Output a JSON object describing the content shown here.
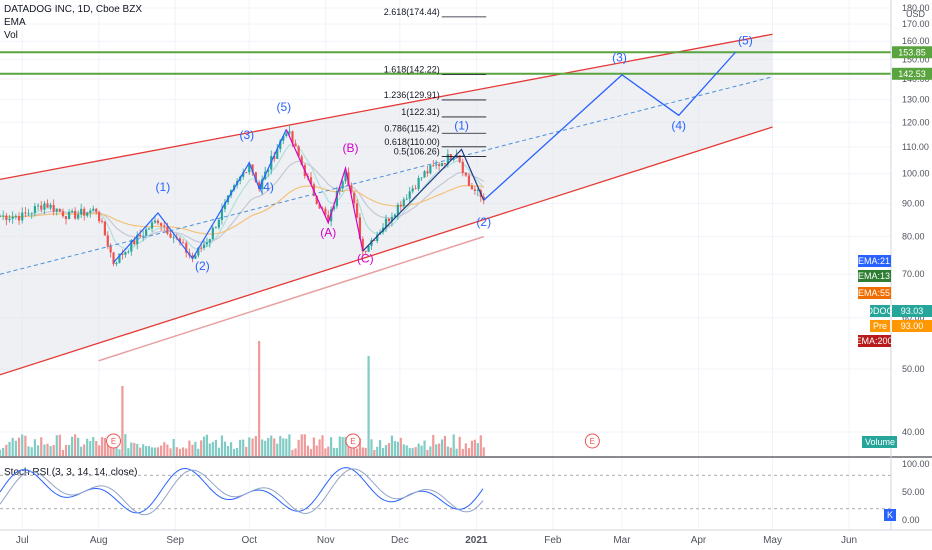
{
  "header": {
    "title": "DATADOG INC, 1D, Cboe BZX",
    "indicator_ema": "EMA",
    "indicator_vol": "Vol"
  },
  "currency": "USD",
  "colors": {
    "channel": "#e53935",
    "channel_fill": "#e0e3eb",
    "midline": "#4a90d9",
    "projection": "#2962ff",
    "hline": "#5aa43f",
    "wave_blue": "#2962ff",
    "wave_magenta": "#d500c8",
    "candle_up": "#26a69a",
    "candle_down": "#ef5350",
    "vol_up": "#80cbc4",
    "vol_down": "#ef9a9a",
    "ema_fast": "#b2dfdb",
    "ema_mid": "#c5c8d6",
    "ema55": "#f5c27a",
    "ema200": "#e8a0a0",
    "stoch_k": "#2962ff",
    "stoch_d": "#90a4c8"
  },
  "chart_data": [
    {
      "type": "line",
      "subtype": "candlestick",
      "title": "DATADOG INC, 1D, Cboe BZX",
      "ylabel": "USD",
      "yscale": "log",
      "ylim": [
        35,
        190
      ],
      "grid": true,
      "x_ticks": [
        "Jul",
        "Aug",
        "Sep",
        "Oct",
        "Nov",
        "Dec",
        "2021",
        "Feb",
        "Mar",
        "Apr",
        "May",
        "Jun"
      ],
      "y_ticks": [
        40,
        50,
        60,
        70,
        80,
        90,
        100,
        110,
        120,
        130,
        140,
        150,
        160,
        170,
        180
      ],
      "price_close_path": [
        {
          "x": "2020-06-22",
          "y": 86
        },
        {
          "x": "2020-07-01",
          "y": 86
        },
        {
          "x": "2020-07-10",
          "y": 90
        },
        {
          "x": "2020-07-20",
          "y": 86
        },
        {
          "x": "2020-07-31",
          "y": 88
        },
        {
          "x": "2020-08-07",
          "y": 73
        },
        {
          "x": "2020-08-25",
          "y": 85
        },
        {
          "x": "2020-09-08",
          "y": 74
        },
        {
          "x": "2020-09-15",
          "y": 80
        },
        {
          "x": "2020-10-01",
          "y": 104
        },
        {
          "x": "2020-10-05",
          "y": 95
        },
        {
          "x": "2020-10-16",
          "y": 117
        },
        {
          "x": "2020-10-26",
          "y": 95
        },
        {
          "x": "2020-11-02",
          "y": 84
        },
        {
          "x": "2020-11-09",
          "y": 102
        },
        {
          "x": "2020-11-16",
          "y": 76
        },
        {
          "x": "2020-11-23",
          "y": 82
        },
        {
          "x": "2020-12-11",
          "y": 100
        },
        {
          "x": "2020-12-24",
          "y": 108
        },
        {
          "x": "2020-12-29",
          "y": 96
        },
        {
          "x": "2021-01-04",
          "y": 91
        }
      ],
      "annotations": {
        "wave_labels_blue": [
          {
            "label": "(1)",
            "x": "2020-08-27",
            "y": 94
          },
          {
            "label": "(2)",
            "x": "2020-09-12",
            "y": 71
          },
          {
            "label": "(3)",
            "x": "2020-09-30",
            "y": 113
          },
          {
            "label": "(4)",
            "x": "2020-10-08",
            "y": 94
          },
          {
            "label": "(5)",
            "x": "2020-10-15",
            "y": 125
          },
          {
            "label": "(1)",
            "x": "2020-12-26",
            "y": 117
          },
          {
            "label": "(2)",
            "x": "2021-01-04",
            "y": 83
          },
          {
            "label": "(3)",
            "x": "2021-02-28",
            "y": 149
          },
          {
            "label": "(4)",
            "x": "2021-03-24",
            "y": 117
          },
          {
            "label": "(5)",
            "x": "2021-04-20",
            "y": 158
          }
        ],
        "wave_labels_magenta": [
          {
            "label": "(A)",
            "x": "2020-11-02",
            "y": 80
          },
          {
            "label": "(B)",
            "x": "2020-11-11",
            "y": 108
          },
          {
            "label": "(C)",
            "x": "2020-11-17",
            "y": 73
          }
        ],
        "fibonacci_levels": [
          {
            "label": "2.618(174.44)",
            "value": 174.44
          },
          {
            "label": "1.618(142.22)",
            "value": 142.22
          },
          {
            "label": "1.236(129.91)",
            "value": 129.91
          },
          {
            "label": "1(122.31)",
            "value": 122.31
          },
          {
            "label": "0.786(115.42)",
            "value": 115.42
          },
          {
            "label": "0.618(110.00)",
            "value": 110.0
          },
          {
            "label": "0.5(106.26)",
            "value": 106.26
          }
        ],
        "horizontal_levels": [
          {
            "label": "153.85",
            "value": 153.85
          },
          {
            "label": "142.53",
            "value": 142.53
          }
        ],
        "earnings_markers": [
          "E",
          "E",
          "E"
        ],
        "projection_path": [
          {
            "x": "2021-01-04",
            "y": 91
          },
          {
            "x": "2021-03-01",
            "y": 142
          },
          {
            "x": "2021-03-24",
            "y": 123
          },
          {
            "x": "2021-04-16",
            "y": 153.85
          }
        ],
        "channel": {
          "upper": [
            {
              "x": "2020-06-22",
              "y": 98
            },
            {
              "x": "2021-05-01",
              "y": 164
            }
          ],
          "lower": [
            {
              "x": "2020-06-22",
              "y": 49
            },
            {
              "x": "2021-05-01",
              "y": 118
            }
          ],
          "mid": [
            {
              "x": "2020-06-22",
              "y": 70
            },
            {
              "x": "2021-05-01",
              "y": 141
            }
          ]
        }
      },
      "price_badges": [
        {
          "label": "EMA:21",
          "color": "#2962ff"
        },
        {
          "label": "EMA:13",
          "color": "#2e7d32"
        },
        {
          "label": "EMA:55",
          "color": "#ef6c00"
        },
        {
          "label": "DDOG",
          "value": "93.03",
          "color": "#26a69a"
        },
        {
          "label": "Pre",
          "value": "93.00",
          "color": "#ff9800"
        },
        {
          "label": "EMA:200",
          "color": "#b71c1c"
        }
      ],
      "volume_label": "Volume"
    },
    {
      "type": "line",
      "title": "Stoch RSI (3, 3, 14, 14, close)",
      "ylim": [
        0,
        100
      ],
      "y_ticks": [
        "100.00",
        "50.00",
        "0.00"
      ],
      "bands": [
        80,
        20
      ],
      "badge": "K"
    }
  ]
}
